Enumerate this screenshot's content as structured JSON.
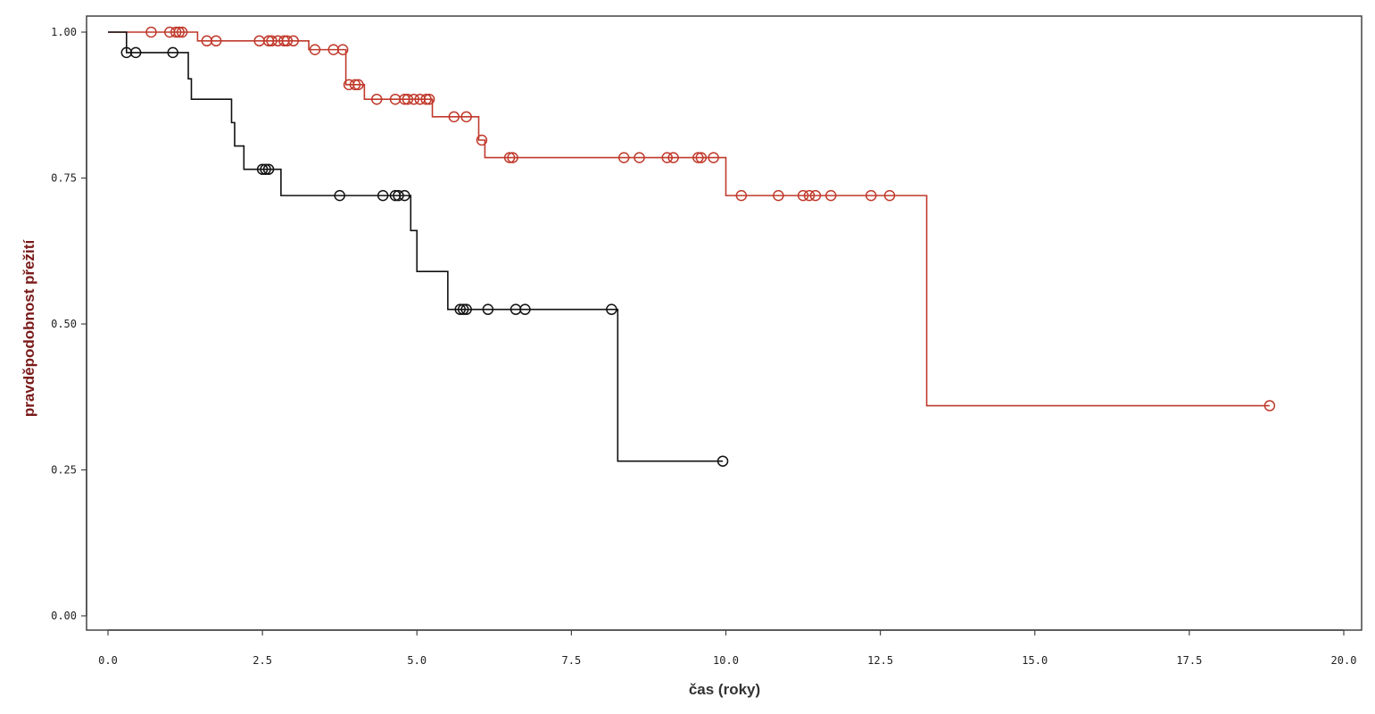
{
  "chart_data": {
    "type": "line",
    "subtype": "kaplan-meier-step",
    "xlabel": "čas (roky)",
    "ylabel": "pravděpodobnost přežití",
    "xlim": [
      0,
      20
    ],
    "ylim": [
      0,
      1
    ],
    "xticks": [
      "0.0",
      "2.5",
      "5.0",
      "7.5",
      "10.0",
      "12.5",
      "15.0",
      "17.5",
      "20.0"
    ],
    "yticks": [
      "0.00",
      "0.25",
      "0.50",
      "0.75",
      "1.00"
    ],
    "grid": false,
    "legend": "none",
    "series": [
      {
        "color": "#c0392b",
        "steps": [
          [
            0,
            1.0
          ],
          [
            1.45,
            0.985
          ],
          [
            3.25,
            0.97
          ],
          [
            3.85,
            0.91
          ],
          [
            4.15,
            0.885
          ],
          [
            5.25,
            0.855
          ],
          [
            6.0,
            0.815
          ],
          [
            6.1,
            0.785
          ],
          [
            10.0,
            0.72
          ],
          [
            13.25,
            0.36
          ]
        ],
        "end_x": 18.8,
        "censored": [
          0.7,
          1.0,
          1.1,
          1.15,
          1.2,
          1.6,
          1.75,
          2.45,
          2.6,
          2.65,
          2.75,
          2.85,
          2.9,
          3.0,
          3.35,
          3.65,
          3.8,
          3.9,
          4.0,
          4.05,
          4.35,
          4.65,
          4.8,
          4.85,
          4.95,
          5.05,
          5.15,
          5.2,
          5.6,
          5.8,
          6.05,
          6.5,
          6.55,
          8.35,
          8.6,
          9.05,
          9.15,
          9.55,
          9.6,
          9.8,
          10.25,
          10.85,
          11.25,
          11.35,
          11.45,
          11.7,
          12.35,
          12.65,
          18.8
        ]
      },
      {
        "color": "#111111",
        "steps": [
          [
            0,
            1.0
          ],
          [
            0.3,
            0.965
          ],
          [
            1.3,
            0.92
          ],
          [
            1.35,
            0.885
          ],
          [
            2.0,
            0.845
          ],
          [
            2.05,
            0.805
          ],
          [
            2.2,
            0.765
          ],
          [
            2.8,
            0.72
          ],
          [
            4.9,
            0.66
          ],
          [
            5.0,
            0.59
          ],
          [
            5.5,
            0.525
          ],
          [
            8.25,
            0.265
          ]
        ],
        "end_x": 9.95,
        "censored": [
          0.3,
          0.45,
          1.05,
          2.5,
          2.55,
          2.6,
          3.75,
          4.45,
          4.65,
          4.7,
          4.8,
          5.7,
          5.75,
          5.8,
          6.15,
          6.6,
          6.75,
          8.15,
          9.95
        ]
      }
    ]
  }
}
